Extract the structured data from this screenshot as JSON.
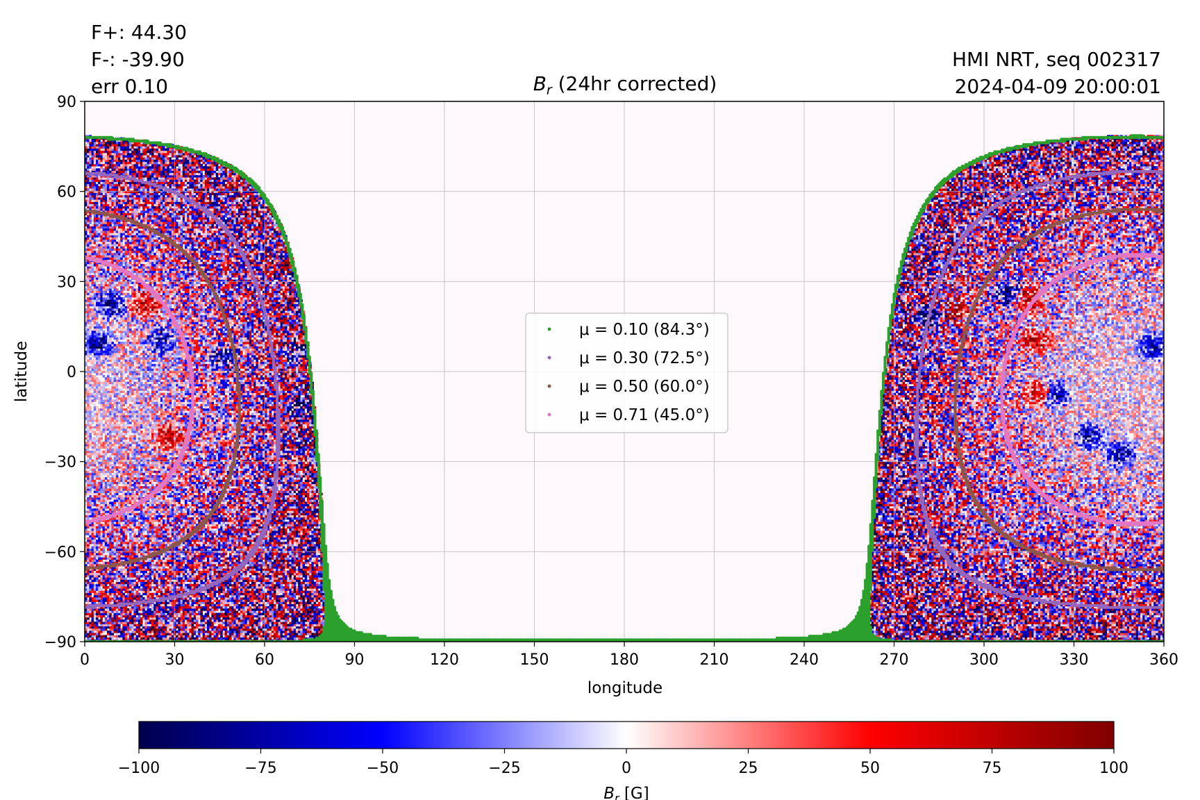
{
  "header": {
    "flux_pos": "F+: 44.30",
    "flux_neg": "F-: -39.90",
    "err": "err 0.10",
    "instrument": "HMI NRT, seq 002317",
    "timestamp": "2024-04-09 20:00:01"
  },
  "chart_data": {
    "type": "heatmap",
    "title": "B_r (24hr corrected)",
    "title_symbol": "B",
    "title_subscript": "r",
    "title_rest": " (24hr corrected)",
    "xlabel": "longitude",
    "ylabel": "latitude",
    "xlim": [
      0,
      360
    ],
    "ylim": [
      -90,
      90
    ],
    "xticks": [
      0,
      30,
      60,
      90,
      120,
      150,
      180,
      210,
      240,
      270,
      300,
      330,
      360
    ],
    "yticks": [
      -90,
      -60,
      -30,
      0,
      30,
      60,
      90
    ],
    "ytick_labels": [
      "−90",
      "−60",
      "−30",
      "0",
      "30",
      "60",
      "90"
    ],
    "grid": true,
    "legend_position": "center",
    "visible_disk_longitude_ranges": [
      [
        0,
        82
      ],
      [
        263,
        360
      ]
    ],
    "disk_center": {
      "longitude": 351,
      "latitude": -6
    },
    "series": [
      {
        "name": "μ = 0.10 (84.3°)",
        "mu": 0.1,
        "angle_deg": 84.3,
        "color": "#2ca02c"
      },
      {
        "name": "μ = 0.30 (72.5°)",
        "mu": 0.3,
        "angle_deg": 72.5,
        "color": "#9467bd"
      },
      {
        "name": "μ = 0.50 (60.0°)",
        "mu": 0.5,
        "angle_deg": 60.0,
        "color": "#8c564b"
      },
      {
        "name": "μ = 0.71 (45.0°)",
        "mu": 0.71,
        "angle_deg": 45.0,
        "color": "#e377c2"
      }
    ],
    "colorbar": {
      "label_symbol": "B",
      "label_subscript": "r",
      "label_unit": " [G]",
      "range": [
        -100,
        100
      ],
      "ticks": [
        -100,
        -75,
        -50,
        -25,
        0,
        25,
        50,
        75,
        100
      ],
      "tick_labels": [
        "−100",
        "−75",
        "−50",
        "−25",
        "0",
        "25",
        "50",
        "75",
        "100"
      ],
      "colormap": "seismic",
      "colors": [
        "#00004c",
        "#0000ff",
        "#ffffff",
        "#ff0000",
        "#800000"
      ]
    }
  }
}
